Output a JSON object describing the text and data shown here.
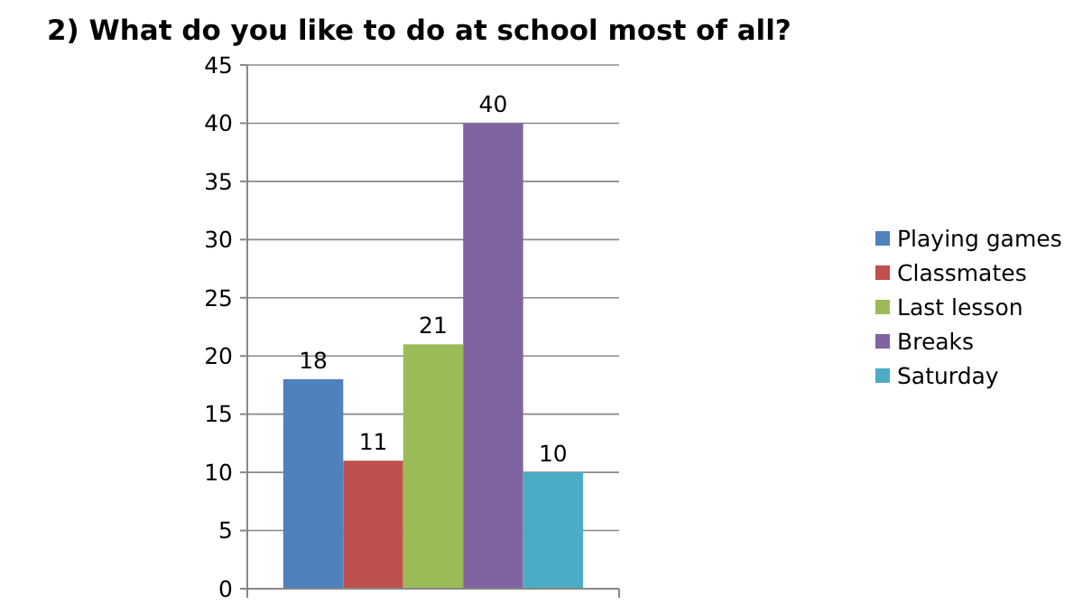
{
  "chart_data": {
    "type": "bar",
    "title": "2) What do you like to do at school most of all?",
    "categories": [
      null
    ],
    "series": [
      {
        "name": "Playing games",
        "color": "#4f81bd",
        "values": [
          18
        ]
      },
      {
        "name": "Classmates",
        "color": "#c0504d",
        "values": [
          11
        ]
      },
      {
        "name": "Last lesson",
        "color": "#9bbb59",
        "values": [
          21
        ]
      },
      {
        "name": "Breaks",
        "color": "#8064a2",
        "values": [
          40
        ]
      },
      {
        "name": "Saturday",
        "color": "#4bacc6",
        "values": [
          10
        ]
      }
    ],
    "ylim": [
      0,
      45
    ],
    "yticks": [
      0,
      5,
      10,
      15,
      20,
      25,
      30,
      35,
      40,
      45
    ],
    "grid": "y",
    "legend": "right",
    "data_labels": true
  }
}
